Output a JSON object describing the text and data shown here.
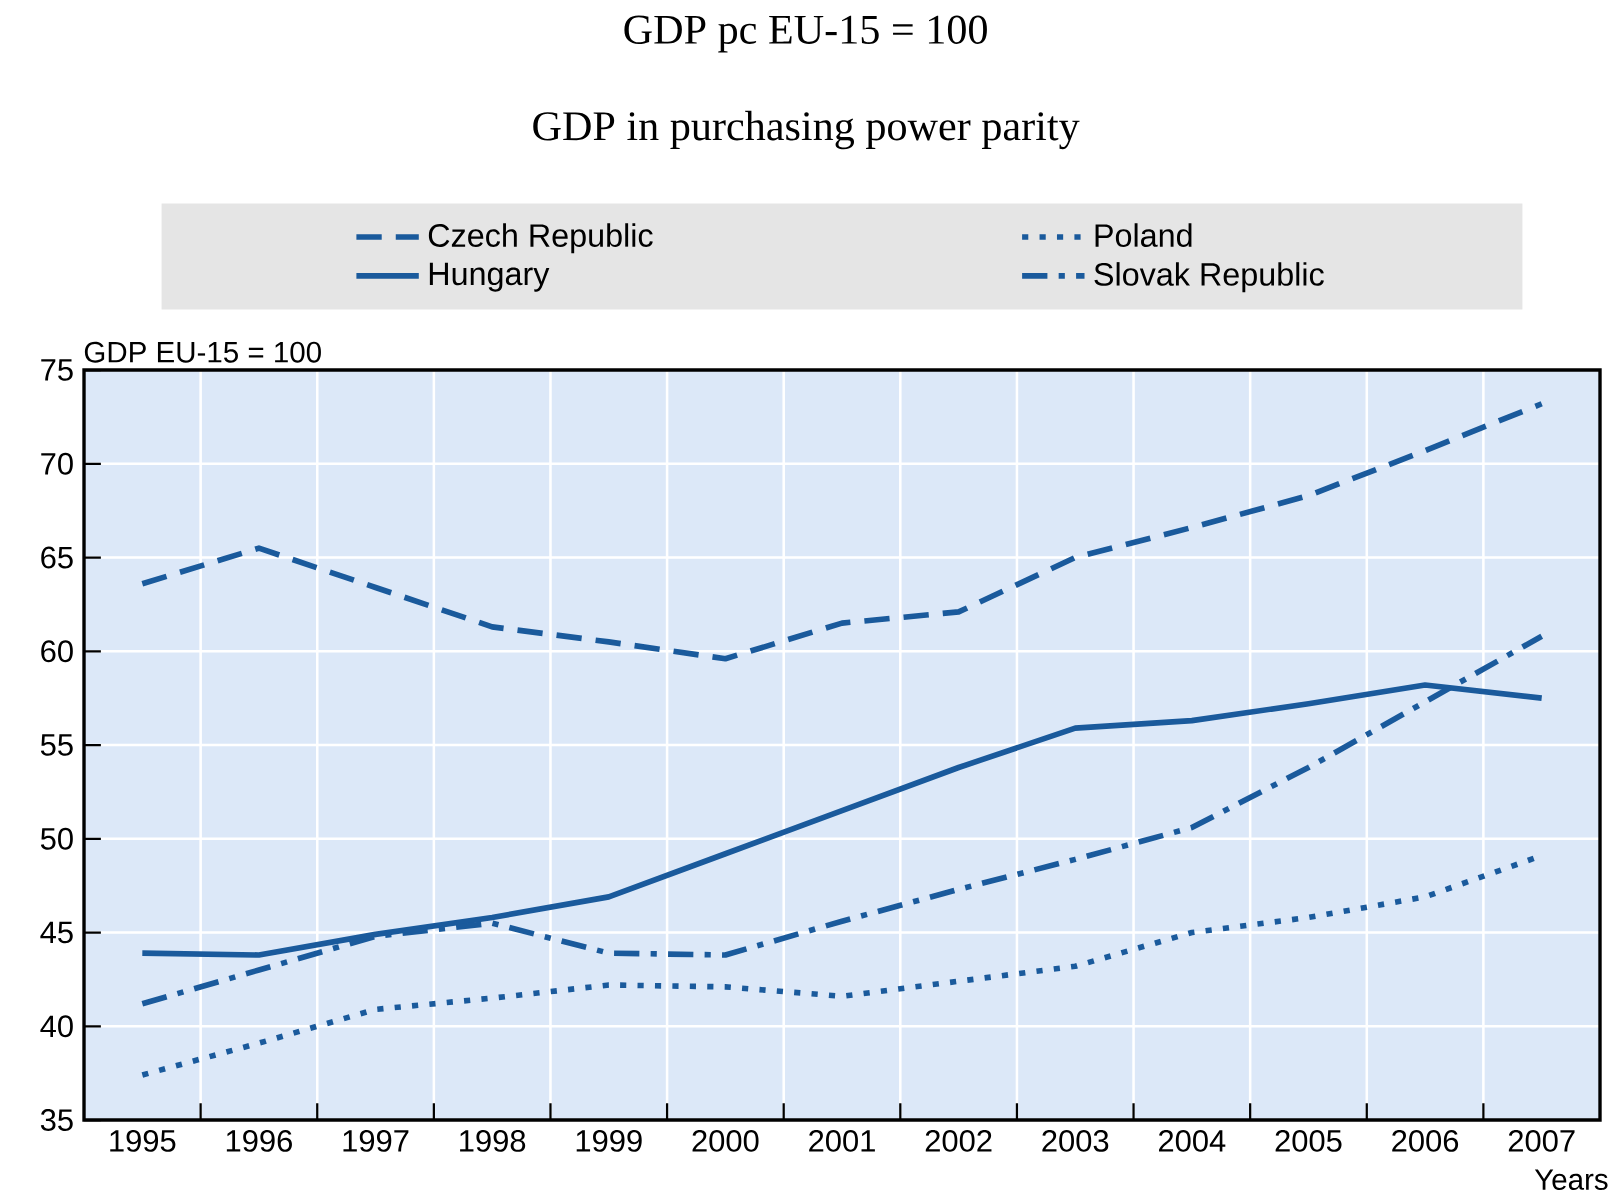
{
  "chart_data": {
    "type": "line",
    "title": "GDP pc EU-15 = 100",
    "subtitle": "GDP in purchasing power parity",
    "ylabel": "GDP EU-15 = 100",
    "xlabel": "Years",
    "categories": [
      "1995",
      "1996",
      "1997",
      "1998",
      "1999",
      "2000",
      "2001",
      "2002",
      "2003",
      "2004",
      "2005",
      "2006",
      "2007"
    ],
    "series": [
      {
        "name": "Czech Republic",
        "color": "#1a5a9c",
        "line_style": "dashed",
        "values": [
          63.6,
          65.5,
          63.4,
          61.3,
          60.5,
          59.6,
          61.5,
          62.1,
          65.0,
          66.6,
          68.3,
          70.7,
          73.2
        ]
      },
      {
        "name": "Poland",
        "color": "#1a5a9c",
        "line_style": "dotted",
        "values": [
          37.4,
          39.1,
          40.9,
          41.5,
          42.2,
          42.1,
          41.6,
          42.4,
          43.2,
          45.0,
          45.8,
          46.9,
          49.1
        ]
      },
      {
        "name": "Hungary",
        "color": "#1a5a9c",
        "line_style": "solid",
        "values": [
          43.9,
          43.8,
          44.9,
          45.8,
          46.9,
          49.2,
          51.5,
          53.8,
          55.9,
          56.3,
          57.2,
          58.2,
          57.5
        ]
      },
      {
        "name": "Slovak Republic",
        "color": "#1a5a9c",
        "line_style": "dashdot",
        "values": [
          41.2,
          43.0,
          44.8,
          45.5,
          43.9,
          43.8,
          45.6,
          47.3,
          48.9,
          50.6,
          53.8,
          57.3,
          60.8
        ]
      }
    ],
    "ylim": [
      35,
      75
    ],
    "yticks": [
      35,
      40,
      45,
      50,
      55,
      60,
      65,
      70,
      75
    ],
    "grid": true,
    "legend": "top",
    "marker": "none"
  }
}
